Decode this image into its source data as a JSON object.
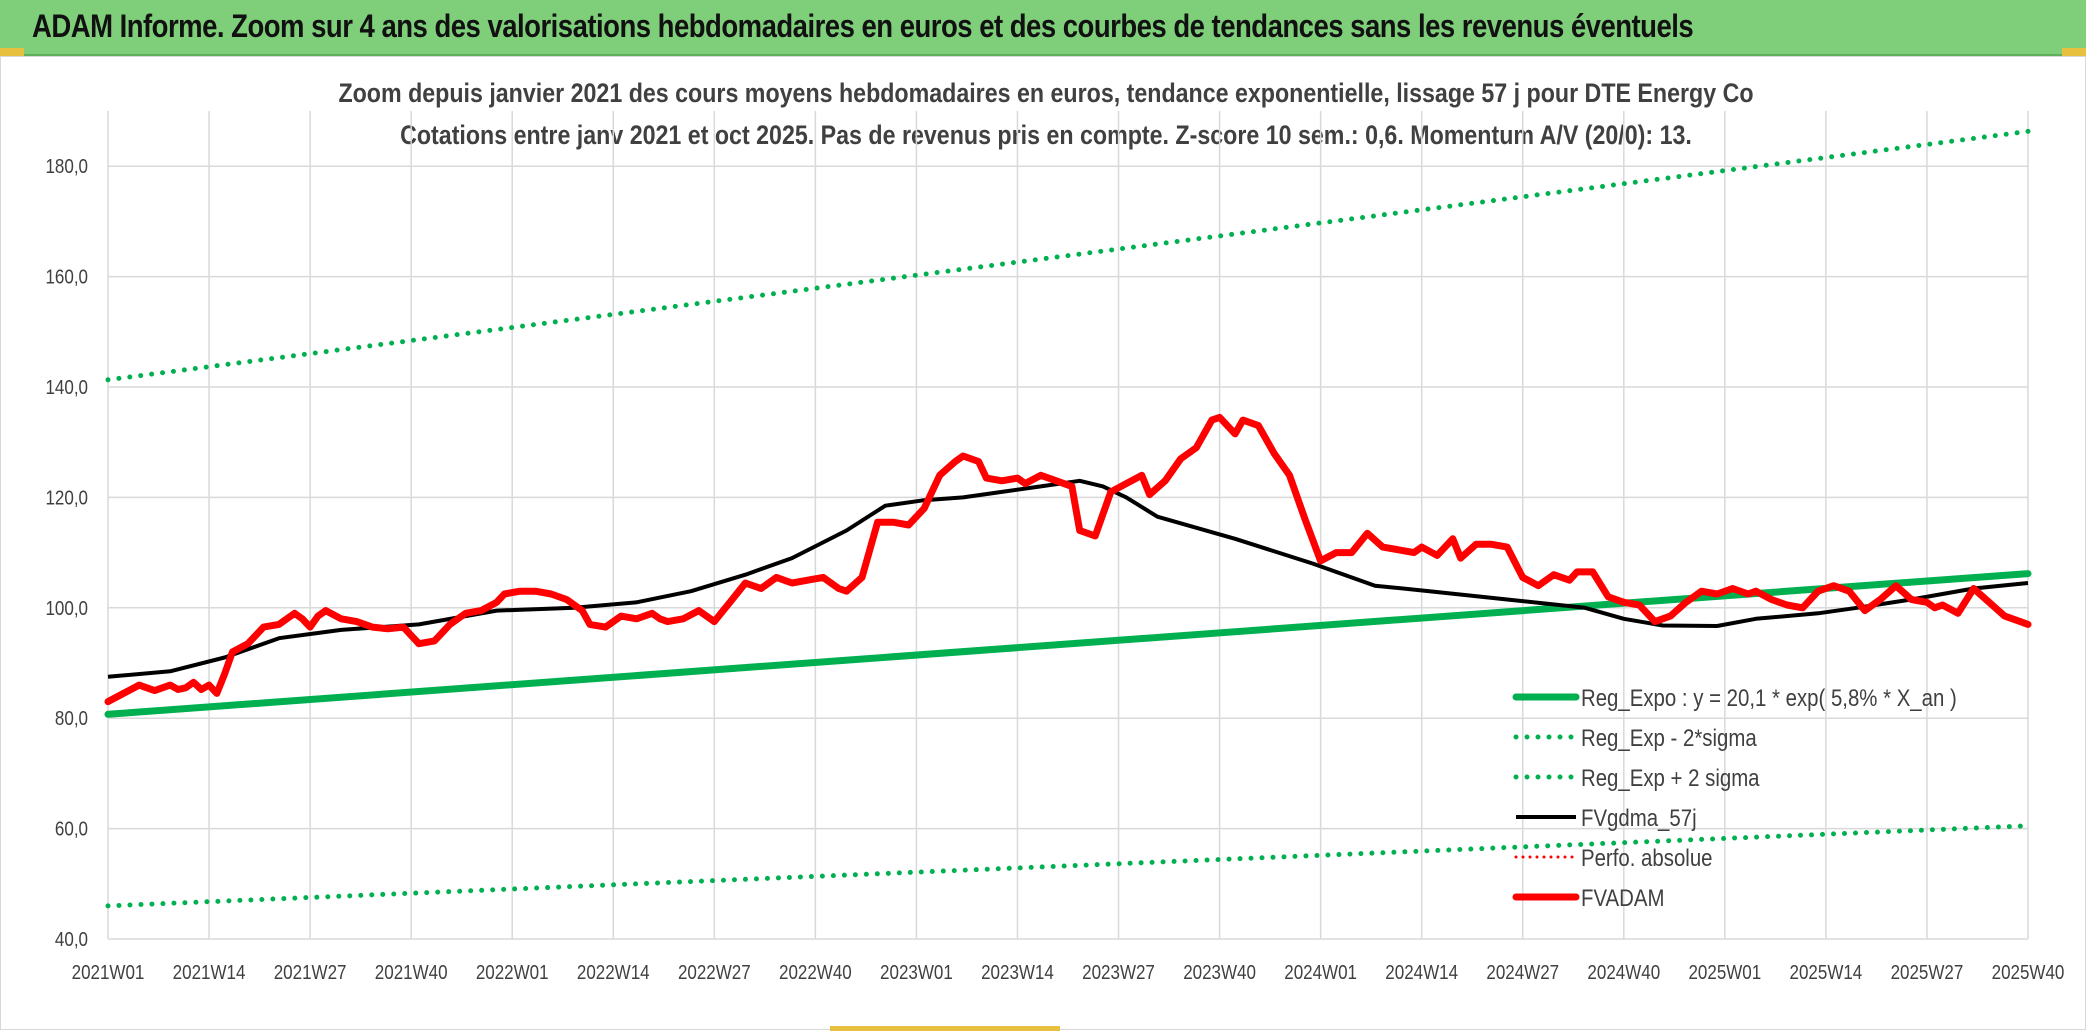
{
  "banner": {
    "title": "ADAM Informe. Zoom sur 4 ans des valorisations hebdomadaires en euros et des courbes de tendances sans les revenus éventuels"
  },
  "colors": {
    "banner_bg": "#7fcf7a",
    "trend_green": "#00b050",
    "smooth_black": "#000000",
    "price_red": "#ff0000",
    "grid": "#d9d9d9",
    "text": "#404040"
  },
  "chart_data": {
    "type": "line",
    "title": "Zoom depuis janvier 2021 des cours moyens hebdomadaires en euros, tendance exponentielle, lissage 57 j pour DTE Energy Co",
    "subtitle": "Cotations entre janv 2021 et oct 2025. Pas de revenus pris en compte. Z-score 10 sem.: 0,6. Momentum A/V (20/0): 13.",
    "ylim": [
      40,
      190
    ],
    "y_ticks": [
      "40,0",
      "60,0",
      "80,0",
      "100,0",
      "120,0",
      "140,0",
      "160,0",
      "180,0"
    ],
    "y_tick_values": [
      40,
      60,
      80,
      100,
      120,
      140,
      160,
      180
    ],
    "x_ticks": [
      "2021W01",
      "2021W14",
      "2021W27",
      "2021W40",
      "2022W01",
      "2022W14",
      "2022W27",
      "2022W40",
      "2023W01",
      "2023W14",
      "2023W27",
      "2023W40",
      "2024W01",
      "2024W14",
      "2024W27",
      "2024W40",
      "2025W01",
      "2025W14",
      "2025W27",
      "2025W40"
    ],
    "n_weeks": 248,
    "legend_position": "bottom-right",
    "series": [
      {
        "name": "Reg_Expo : y = 20,1 * exp( 5,8% *  X_an )",
        "style": "solid-thick-green",
        "points": [
          [
            0,
            80.7
          ],
          [
            247,
            106.2
          ]
        ]
      },
      {
        "name": "Reg_Exp - 2*sigma",
        "style": "dotted-green",
        "points": [
          [
            0,
            46.0
          ],
          [
            247,
            60.5
          ]
        ]
      },
      {
        "name": "Reg_Exp + 2 sigma",
        "style": "dotted-green",
        "points": [
          [
            0,
            141.3
          ],
          [
            247,
            186.3
          ]
        ]
      },
      {
        "name": "FVgdma_57j",
        "style": "solid-black",
        "points": [
          [
            0,
            87.5
          ],
          [
            8,
            88.5
          ],
          [
            15,
            91.0
          ],
          [
            22,
            94.5
          ],
          [
            30,
            96.0
          ],
          [
            40,
            97.0
          ],
          [
            50,
            99.5
          ],
          [
            60,
            100.0
          ],
          [
            68,
            101.0
          ],
          [
            75,
            103.0
          ],
          [
            82,
            106.0
          ],
          [
            88,
            109.0
          ],
          [
            95,
            114.0
          ],
          [
            100,
            118.5
          ],
          [
            105,
            119.5
          ],
          [
            110,
            120.0
          ],
          [
            115,
            121.0
          ],
          [
            120,
            122.0
          ],
          [
            125,
            123.0
          ],
          [
            128,
            122.0
          ],
          [
            131,
            120.0
          ],
          [
            135,
            116.5
          ],
          [
            145,
            112.5
          ],
          [
            155,
            108.0
          ],
          [
            163,
            104.0
          ],
          [
            170,
            103.0
          ],
          [
            180,
            101.5
          ],
          [
            190,
            100.0
          ],
          [
            195,
            98.0
          ],
          [
            200,
            96.8
          ],
          [
            207,
            96.7
          ],
          [
            212,
            98.0
          ],
          [
            220,
            99.0
          ],
          [
            225,
            100.0
          ],
          [
            232,
            101.5
          ],
          [
            240,
            103.5
          ],
          [
            247,
            104.5
          ]
        ]
      },
      {
        "name": "Perfo. absolue",
        "style": "dotted-red",
        "points": []
      },
      {
        "name": "FVADAM",
        "style": "solid-thick-red",
        "points": [
          [
            0,
            83.0
          ],
          [
            2,
            84.5
          ],
          [
            4,
            86.0
          ],
          [
            6,
            85.0
          ],
          [
            8,
            86.0
          ],
          [
            9,
            85.2
          ],
          [
            10,
            85.5
          ],
          [
            11,
            86.5
          ],
          [
            12,
            85.2
          ],
          [
            13,
            86.0
          ],
          [
            14,
            84.5
          ],
          [
            15,
            88.0
          ],
          [
            16,
            92.0
          ],
          [
            18,
            93.5
          ],
          [
            20,
            96.5
          ],
          [
            22,
            97.0
          ],
          [
            24,
            99.0
          ],
          [
            25,
            98.0
          ],
          [
            26,
            96.5
          ],
          [
            27,
            98.5
          ],
          [
            28,
            99.5
          ],
          [
            30,
            98.0
          ],
          [
            32,
            97.5
          ],
          [
            34,
            96.5
          ],
          [
            36,
            96.2
          ],
          [
            38,
            96.5
          ],
          [
            40,
            93.5
          ],
          [
            42,
            94.0
          ],
          [
            44,
            97.0
          ],
          [
            46,
            99.0
          ],
          [
            48,
            99.5
          ],
          [
            50,
            101.0
          ],
          [
            51,
            102.5
          ],
          [
            53,
            103.0
          ],
          [
            55,
            103.0
          ],
          [
            57,
            102.5
          ],
          [
            59,
            101.5
          ],
          [
            61,
            99.5
          ],
          [
            62,
            97.0
          ],
          [
            64,
            96.5
          ],
          [
            66,
            98.5
          ],
          [
            68,
            98.0
          ],
          [
            70,
            99.0
          ],
          [
            71,
            98.0
          ],
          [
            72,
            97.5
          ],
          [
            74,
            98.0
          ],
          [
            76,
            99.5
          ],
          [
            78,
            97.5
          ],
          [
            80,
            101.0
          ],
          [
            82,
            104.5
          ],
          [
            84,
            103.5
          ],
          [
            86,
            105.5
          ],
          [
            88,
            104.5
          ],
          [
            90,
            105.0
          ],
          [
            92,
            105.5
          ],
          [
            94,
            103.5
          ],
          [
            95,
            103.0
          ],
          [
            97,
            105.5
          ],
          [
            99,
            115.5
          ],
          [
            101,
            115.5
          ],
          [
            103,
            115.0
          ],
          [
            105,
            118.0
          ],
          [
            107,
            124.0
          ],
          [
            109,
            126.5
          ],
          [
            110,
            127.5
          ],
          [
            112,
            126.5
          ],
          [
            113,
            123.5
          ],
          [
            115,
            123.0
          ],
          [
            117,
            123.5
          ],
          [
            118,
            122.5
          ],
          [
            120,
            124.0
          ],
          [
            122,
            123.0
          ],
          [
            124,
            122.0
          ],
          [
            125,
            114.0
          ],
          [
            127,
            113.0
          ],
          [
            129,
            121.0
          ],
          [
            131,
            122.5
          ],
          [
            133,
            124.0
          ],
          [
            134,
            120.5
          ],
          [
            136,
            123.0
          ],
          [
            138,
            127.0
          ],
          [
            140,
            129.0
          ],
          [
            142,
            134.0
          ],
          [
            143,
            134.5
          ],
          [
            145,
            131.5
          ],
          [
            146,
            134.0
          ],
          [
            148,
            133.0
          ],
          [
            150,
            128.0
          ],
          [
            152,
            124.0
          ],
          [
            154,
            116.0
          ],
          [
            156,
            108.5
          ],
          [
            158,
            110.0
          ],
          [
            160,
            110.0
          ],
          [
            162,
            113.5
          ],
          [
            164,
            111.0
          ],
          [
            166,
            110.5
          ],
          [
            168,
            110.0
          ],
          [
            169,
            111.0
          ],
          [
            171,
            109.5
          ],
          [
            173,
            112.5
          ],
          [
            174,
            109.0
          ],
          [
            176,
            111.5
          ],
          [
            178,
            111.5
          ],
          [
            180,
            111.0
          ],
          [
            182,
            105.5
          ],
          [
            184,
            104.0
          ],
          [
            186,
            106.0
          ],
          [
            188,
            105.0
          ],
          [
            189,
            106.5
          ],
          [
            191,
            106.5
          ],
          [
            193,
            102.0
          ],
          [
            195,
            101.0
          ],
          [
            197,
            100.5
          ],
          [
            199,
            97.5
          ],
          [
            201,
            98.5
          ],
          [
            203,
            101.0
          ],
          [
            205,
            103.0
          ],
          [
            207,
            102.5
          ],
          [
            209,
            103.5
          ],
          [
            211,
            102.5
          ],
          [
            212,
            103.0
          ],
          [
            214,
            101.5
          ],
          [
            216,
            100.5
          ],
          [
            218,
            100.0
          ],
          [
            220,
            103.0
          ],
          [
            222,
            104.0
          ],
          [
            224,
            103.0
          ],
          [
            226,
            99.5
          ],
          [
            228,
            101.5
          ],
          [
            230,
            104.0
          ],
          [
            232,
            101.5
          ],
          [
            234,
            101.0
          ],
          [
            235,
            100.0
          ],
          [
            236,
            100.5
          ],
          [
            238,
            99.0
          ],
          [
            240,
            103.5
          ],
          [
            242,
            101.0
          ],
          [
            244,
            98.5
          ],
          [
            246,
            97.5
          ],
          [
            247,
            97.0
          ]
        ]
      }
    ]
  }
}
